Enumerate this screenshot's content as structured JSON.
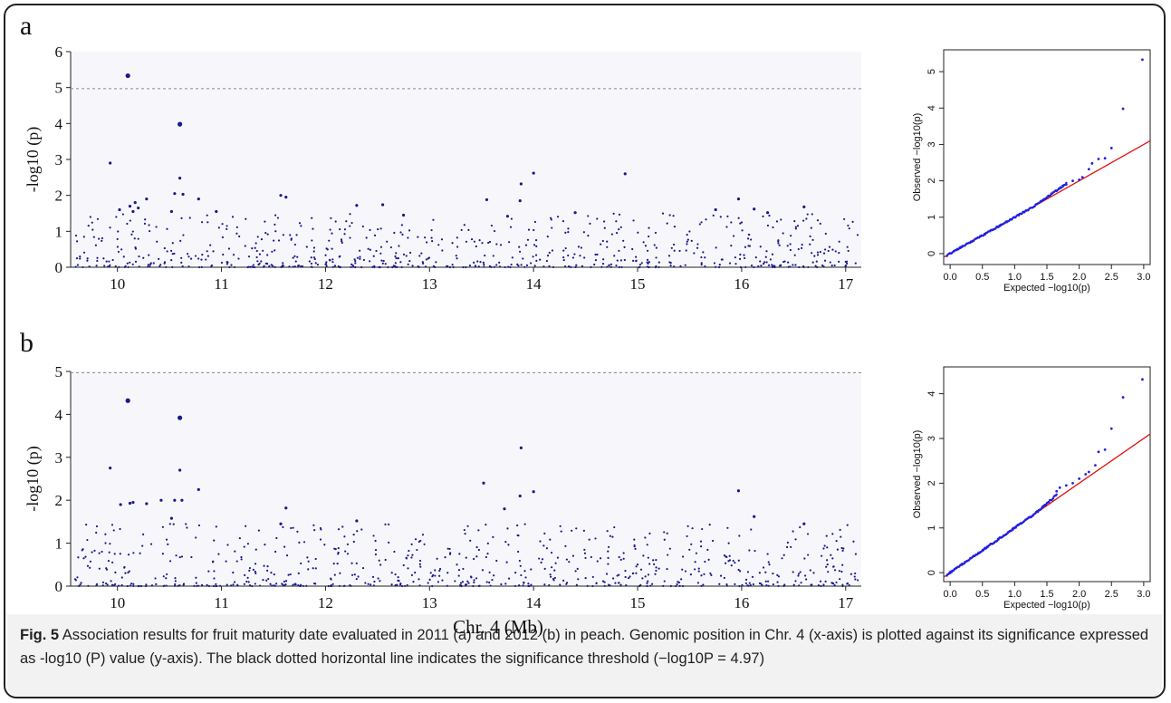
{
  "figure": {
    "panel_letters": [
      "a",
      "b"
    ],
    "x_axis_label": "Chr. 4 (Mb)",
    "caption": {
      "fig_label": "Fig. 5",
      "text": " Association results for fruit maturity date evaluated in 2011 (a) and 2012 (b) in peach. Genomic position in Chr. 4 (x-axis) is plotted against its significance expressed as -log10 (P) value (y-axis). The black dotted horizontal line indicates the significance threshold (−log10P = 4.97)"
    }
  },
  "colors": {
    "points": "#1a1a8c",
    "qq_points": "#2020e0",
    "qq_line": "#e01010",
    "threshold": "#888888",
    "plot_bg": "#f7f7fb"
  },
  "chart_data": [
    {
      "type": "scatter",
      "panel": "a",
      "ylabel": "-log10 (p)",
      "xlim": [
        9.55,
        17.15
      ],
      "ylim": [
        0,
        6
      ],
      "x_ticks": [
        10,
        11,
        12,
        13,
        14,
        15,
        16,
        17
      ],
      "y_ticks": [
        0,
        1,
        2,
        3,
        4,
        5,
        6
      ],
      "threshold": 4.97,
      "highlighted_points": [
        {
          "x": 10.1,
          "y": 5.33
        },
        {
          "x": 10.6,
          "y": 3.98
        },
        {
          "x": 9.93,
          "y": 2.9
        },
        {
          "x": 10.6,
          "y": 2.48
        },
        {
          "x": 14.0,
          "y": 2.62
        },
        {
          "x": 14.88,
          "y": 2.6
        },
        {
          "x": 13.88,
          "y": 2.32
        },
        {
          "x": 10.55,
          "y": 2.05
        },
        {
          "x": 10.63,
          "y": 2.03
        },
        {
          "x": 11.57,
          "y": 2.0
        },
        {
          "x": 11.62,
          "y": 1.95
        },
        {
          "x": 15.97,
          "y": 1.9
        },
        {
          "x": 10.78,
          "y": 1.9
        },
        {
          "x": 13.55,
          "y": 1.88
        },
        {
          "x": 13.87,
          "y": 1.85
        },
        {
          "x": 10.17,
          "y": 1.8
        },
        {
          "x": 10.28,
          "y": 1.9
        },
        {
          "x": 12.55,
          "y": 1.74
        },
        {
          "x": 12.3,
          "y": 1.72
        },
        {
          "x": 16.6,
          "y": 1.68
        },
        {
          "x": 15.75,
          "y": 1.6
        },
        {
          "x": 16.12,
          "y": 1.62
        },
        {
          "x": 10.02,
          "y": 1.6
        },
        {
          "x": 10.12,
          "y": 1.7
        },
        {
          "x": 10.15,
          "y": 1.55
        },
        {
          "x": 10.2,
          "y": 1.65
        },
        {
          "x": 10.52,
          "y": 1.55
        },
        {
          "x": 10.95,
          "y": 1.55
        },
        {
          "x": 14.4,
          "y": 1.52
        },
        {
          "x": 16.25,
          "y": 1.52
        },
        {
          "x": 12.75,
          "y": 1.45
        },
        {
          "x": 13.75,
          "y": 1.42
        }
      ],
      "background_points": {
        "count": 700,
        "x_range": [
          9.58,
          17.12
        ],
        "y_range": [
          0,
          1.5
        ]
      }
    },
    {
      "type": "scatter",
      "panel": "b",
      "ylabel": "-log10 (p)",
      "xlim": [
        9.55,
        17.15
      ],
      "ylim": [
        0,
        5
      ],
      "x_ticks": [
        10,
        11,
        12,
        13,
        14,
        15,
        16,
        17
      ],
      "y_ticks": [
        0,
        1,
        2,
        3,
        4,
        5
      ],
      "threshold": 4.97,
      "highlighted_points": [
        {
          "x": 10.1,
          "y": 4.32
        },
        {
          "x": 10.6,
          "y": 3.92
        },
        {
          "x": 13.88,
          "y": 3.22
        },
        {
          "x": 9.93,
          "y": 2.75
        },
        {
          "x": 10.6,
          "y": 2.7
        },
        {
          "x": 13.52,
          "y": 2.4
        },
        {
          "x": 10.78,
          "y": 2.25
        },
        {
          "x": 15.97,
          "y": 2.22
        },
        {
          "x": 14.0,
          "y": 2.2
        },
        {
          "x": 13.87,
          "y": 2.1
        },
        {
          "x": 10.55,
          "y": 2.0
        },
        {
          "x": 10.62,
          "y": 2.0
        },
        {
          "x": 10.42,
          "y": 2.0
        },
        {
          "x": 10.03,
          "y": 1.9
        },
        {
          "x": 10.12,
          "y": 1.93
        },
        {
          "x": 10.15,
          "y": 1.95
        },
        {
          "x": 10.28,
          "y": 1.92
        },
        {
          "x": 11.62,
          "y": 1.82
        },
        {
          "x": 13.72,
          "y": 1.8
        },
        {
          "x": 16.12,
          "y": 1.62
        },
        {
          "x": 10.52,
          "y": 1.58
        },
        {
          "x": 12.3,
          "y": 1.52
        },
        {
          "x": 11.57,
          "y": 1.45
        },
        {
          "x": 16.6,
          "y": 1.45
        }
      ],
      "background_points": {
        "count": 700,
        "x_range": [
          9.58,
          17.12
        ],
        "y_range": [
          0,
          1.45
        ]
      }
    },
    {
      "type": "scatter",
      "panel": "a-qq",
      "xlabel": "Expected −log10(p)",
      "ylabel": "Observed −log10(p)",
      "xlim": [
        -0.1,
        3.1
      ],
      "ylim": [
        -0.3,
        5.6
      ],
      "x_ticks": [
        0.0,
        0.5,
        1.0,
        1.5,
        2.0,
        2.5,
        3.0
      ],
      "y_ticks": [
        0,
        1,
        2,
        3,
        4,
        5
      ],
      "reference_line": [
        [
          -0.1,
          -0.1
        ],
        [
          3.1,
          3.1
        ]
      ],
      "tail_points": [
        {
          "x": 1.8,
          "y": 1.9
        },
        {
          "x": 1.9,
          "y": 2.0
        },
        {
          "x": 2.0,
          "y": 2.03
        },
        {
          "x": 2.05,
          "y": 2.1
        },
        {
          "x": 2.15,
          "y": 2.32
        },
        {
          "x": 2.2,
          "y": 2.48
        },
        {
          "x": 2.3,
          "y": 2.6
        },
        {
          "x": 2.4,
          "y": 2.62
        },
        {
          "x": 2.5,
          "y": 2.9
        },
        {
          "x": 2.68,
          "y": 3.98
        },
        {
          "x": 2.98,
          "y": 5.33
        }
      ],
      "body": {
        "count": 160,
        "x_range": [
          -0.05,
          1.8
        ],
        "deviation": "slightly above line beyond 1.4"
      }
    },
    {
      "type": "scatter",
      "panel": "b-qq",
      "xlabel": "Expected −log10(p)",
      "ylabel": "Observed −log10(p)",
      "xlim": [
        -0.1,
        3.1
      ],
      "ylim": [
        -0.2,
        4.6
      ],
      "x_ticks": [
        0.0,
        0.5,
        1.0,
        1.5,
        2.0,
        2.5,
        3.0
      ],
      "y_ticks": [
        0,
        1,
        2,
        3,
        4
      ],
      "reference_line": [
        [
          -0.1,
          -0.1
        ],
        [
          3.1,
          3.1
        ]
      ],
      "tail_points": [
        {
          "x": 1.65,
          "y": 1.82
        },
        {
          "x": 1.7,
          "y": 1.9
        },
        {
          "x": 1.8,
          "y": 1.95
        },
        {
          "x": 1.9,
          "y": 2.0
        },
        {
          "x": 2.0,
          "y": 2.1
        },
        {
          "x": 2.1,
          "y": 2.2
        },
        {
          "x": 2.15,
          "y": 2.25
        },
        {
          "x": 2.25,
          "y": 2.4
        },
        {
          "x": 2.3,
          "y": 2.7
        },
        {
          "x": 2.4,
          "y": 2.75
        },
        {
          "x": 2.5,
          "y": 3.22
        },
        {
          "x": 2.68,
          "y": 3.92
        },
        {
          "x": 2.98,
          "y": 4.32
        }
      ],
      "body": {
        "count": 160,
        "x_range": [
          -0.05,
          1.65
        ],
        "deviation": "slightly above line beyond 1.3"
      }
    }
  ]
}
